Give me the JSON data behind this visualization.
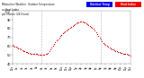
{
  "title": "Milwaukee Weather  Outdoor Temperature",
  "title2": "vs Heat Index",
  "title3": "per Minute (24 Hours)",
  "background_color": "#ffffff",
  "dot_color": "#cc0000",
  "dot_size": 0.8,
  "legend_label1": "Outdoor Temp",
  "legend_label2": "Heat Index",
  "legend_color1": "#0000ee",
  "legend_color2": "#ee0000",
  "ylim": [
    40,
    100
  ],
  "xlim": [
    0,
    1440
  ],
  "yticks": [
    40,
    50,
    60,
    70,
    80,
    90,
    100
  ],
  "ytick_labels": [
    "40",
    "50",
    "60",
    "70",
    "80",
    "90",
    "100"
  ],
  "xticks": [
    0,
    60,
    120,
    180,
    240,
    300,
    360,
    420,
    480,
    540,
    600,
    660,
    720,
    780,
    840,
    900,
    960,
    1020,
    1080,
    1140,
    1200,
    1260,
    1320,
    1380,
    1440
  ],
  "xtick_labels": [
    "12a",
    "1a",
    "2a",
    "3a",
    "4a",
    "5a",
    "6a",
    "7a",
    "8a",
    "9a",
    "10a",
    "11a",
    "12p",
    "1p",
    "2p",
    "3p",
    "4p",
    "5p",
    "6p",
    "7p",
    "8p",
    "9p",
    "10p",
    "11p",
    "12a"
  ],
  "vlines": [
    360,
    1080
  ],
  "vline_color": "#aaaaaa",
  "data_x": [
    0,
    15,
    30,
    45,
    60,
    75,
    90,
    105,
    120,
    135,
    150,
    165,
    180,
    195,
    210,
    225,
    240,
    255,
    270,
    285,
    300,
    315,
    330,
    345,
    360,
    375,
    390,
    405,
    420,
    435,
    450,
    465,
    480,
    495,
    510,
    525,
    540,
    555,
    570,
    585,
    600,
    615,
    630,
    645,
    660,
    675,
    690,
    705,
    720,
    735,
    750,
    765,
    780,
    795,
    810,
    825,
    840,
    855,
    870,
    885,
    900,
    915,
    930,
    945,
    960,
    975,
    990,
    1005,
    1020,
    1035,
    1050,
    1065,
    1080,
    1095,
    1110,
    1125,
    1140,
    1155,
    1170,
    1185,
    1200,
    1215,
    1230,
    1245,
    1260,
    1275,
    1290,
    1305,
    1320,
    1335,
    1350,
    1365,
    1380,
    1395,
    1410,
    1425,
    1440
  ],
  "data_y": [
    62,
    61,
    60,
    60,
    59,
    58,
    58,
    57,
    56,
    55,
    55,
    54,
    54,
    53,
    53,
    52,
    52,
    51,
    51,
    51,
    51,
    50,
    50,
    50,
    50,
    50,
    50,
    51,
    52,
    53,
    55,
    57,
    59,
    61,
    63,
    65,
    67,
    68,
    70,
    72,
    73,
    75,
    76,
    77,
    78,
    79,
    80,
    81,
    82,
    83,
    84,
    85,
    86,
    87,
    87,
    88,
    88,
    88,
    87,
    87,
    86,
    85,
    84,
    83,
    82,
    81,
    80,
    78,
    76,
    74,
    72,
    70,
    68,
    66,
    64,
    63,
    62,
    61,
    60,
    59,
    58,
    57,
    57,
    56,
    55,
    55,
    54,
    54,
    53,
    53,
    52,
    52,
    51,
    51,
    50,
    50,
    49
  ]
}
